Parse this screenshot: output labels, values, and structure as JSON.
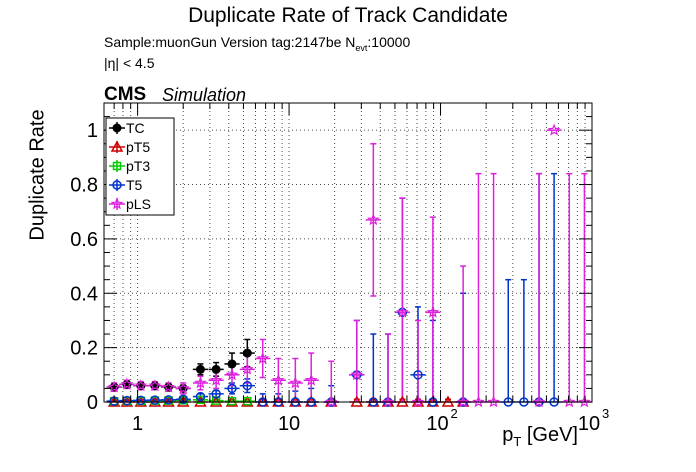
{
  "header": {
    "title": "Duplicate Rate of Track Candidate",
    "sample": "Sample:muonGun   Version tag:2147be  N",
    "sample_sub": "evt",
    "sample_suffix": ":10000",
    "eta_cut": "|η| < 4.5",
    "cms": "CMS",
    "simulation": "Simulation"
  },
  "chart_data": {
    "type": "scatter",
    "title": "Duplicate Rate of Track Candidate",
    "xlabel": "p_T [GeV]",
    "ylabel": "Duplicate Rate",
    "xscale": "log",
    "xlim": [
      0.6,
      1000
    ],
    "ylim": [
      0,
      1.1
    ],
    "xticks": [
      1,
      10,
      100,
      1000
    ],
    "xtick_labels": [
      "1",
      "10",
      "10^2",
      "10^3"
    ],
    "yticks": [
      0,
      0.2,
      0.4,
      0.6,
      0.8,
      1
    ],
    "ytick_labels": [
      "0",
      "0.2",
      "0.4",
      "0.6",
      "0.8",
      "1"
    ],
    "grid": true,
    "legend_position": "top-left",
    "series": [
      {
        "name": "TC",
        "color": "#000000",
        "marker": "filled-circle",
        "points": [
          [
            0.7,
            0.055,
            0.01
          ],
          [
            0.85,
            0.065,
            0.01
          ],
          [
            1.05,
            0.06,
            0.01
          ],
          [
            1.3,
            0.06,
            0.01
          ],
          [
            1.6,
            0.055,
            0.01
          ],
          [
            2.0,
            0.05,
            0.012
          ],
          [
            2.6,
            0.12,
            0.02
          ],
          [
            3.3,
            0.12,
            0.025
          ],
          [
            4.2,
            0.14,
            0.04
          ],
          [
            5.3,
            0.18,
            0.05
          ]
        ]
      },
      {
        "name": "pT5",
        "color": "#cc0000",
        "marker": "open-triangle",
        "points": [
          [
            0.7,
            0.0,
            0.003
          ],
          [
            0.85,
            0.0,
            0.003
          ],
          [
            1.05,
            0.0,
            0.003
          ],
          [
            1.3,
            0.0,
            0.003
          ],
          [
            1.6,
            0.0,
            0.003
          ],
          [
            2.0,
            0.0,
            0.004
          ],
          [
            2.6,
            0.0,
            0.005
          ],
          [
            3.3,
            0.0,
            0.005
          ],
          [
            4.2,
            0.0,
            0.006
          ],
          [
            5.3,
            0.0,
            0.008
          ],
          [
            6.7,
            0.0,
            0.01
          ],
          [
            8.5,
            0.0,
            0.01
          ],
          [
            11,
            0.0,
            0.01
          ],
          [
            14,
            0.0,
            0.01
          ],
          [
            19,
            0.0,
            0.01
          ],
          [
            28,
            0.0,
            0.01
          ],
          [
            36,
            0.0,
            0.01
          ],
          [
            45,
            0.0,
            0.01
          ],
          [
            56,
            0.0,
            0.01
          ],
          [
            71,
            0.0,
            0.01
          ],
          [
            89,
            0.0,
            0.01
          ],
          [
            112,
            0.0,
            0.01
          ],
          [
            141,
            0.0,
            0.01
          ]
        ]
      },
      {
        "name": "pT3",
        "color": "#00cc00",
        "marker": "open-square",
        "points": [
          [
            0.7,
            0.003,
            0.003
          ],
          [
            0.85,
            0.004,
            0.003
          ],
          [
            1.05,
            0.004,
            0.003
          ],
          [
            1.3,
            0.005,
            0.003
          ],
          [
            1.6,
            0.005,
            0.003
          ],
          [
            2.0,
            0.006,
            0.004
          ],
          [
            2.6,
            0.008,
            0.005
          ],
          [
            3.3,
            0.005,
            0.005
          ],
          [
            4.2,
            0.003,
            0.005
          ],
          [
            5.3,
            0.003,
            0.005
          ]
        ]
      },
      {
        "name": "T5",
        "color": "#0033cc",
        "marker": "open-circle",
        "points": [
          [
            0.7,
            0.003,
            0.003
          ],
          [
            0.85,
            0.005,
            0.003
          ],
          [
            1.05,
            0.006,
            0.003
          ],
          [
            1.3,
            0.007,
            0.004
          ],
          [
            1.6,
            0.008,
            0.004
          ],
          [
            2.0,
            0.01,
            0.005
          ],
          [
            2.6,
            0.02,
            0.01
          ],
          [
            3.3,
            0.03,
            0.012
          ],
          [
            4.2,
            0.05,
            0.02
          ],
          [
            5.3,
            0.06,
            0.025
          ],
          [
            6.7,
            0.0,
            0.03
          ],
          [
            8.5,
            0.0,
            0.03
          ],
          [
            11,
            0.0,
            0.04
          ],
          [
            14,
            0.0,
            0.05
          ],
          [
            19,
            0.0,
            0.06
          ],
          [
            28,
            0.1,
            0.2
          ],
          [
            36,
            0.0,
            0.25
          ],
          [
            45,
            0.0,
            0.25
          ],
          [
            56,
            0.33,
            0.42
          ],
          [
            71,
            0.1,
            0.25
          ],
          [
            89,
            0.0,
            0.3
          ],
          [
            141,
            0.0,
            0.4
          ],
          [
            280,
            0.0,
            0.45
          ],
          [
            355,
            0.0,
            0.45
          ],
          [
            447,
            0.0,
            0.84
          ],
          [
            562,
            0.0,
            0.84
          ]
        ]
      },
      {
        "name": "pLS",
        "color": "#dd22dd",
        "marker": "open-star",
        "points": [
          [
            0.7,
            0.055,
            0.015
          ],
          [
            0.85,
            0.065,
            0.015
          ],
          [
            1.05,
            0.06,
            0.015
          ],
          [
            1.3,
            0.06,
            0.015
          ],
          [
            1.6,
            0.055,
            0.015
          ],
          [
            2.0,
            0.05,
            0.02
          ],
          [
            2.6,
            0.07,
            0.025
          ],
          [
            3.3,
            0.08,
            0.03
          ],
          [
            4.2,
            0.1,
            0.04
          ],
          [
            5.3,
            0.12,
            0.05
          ],
          [
            6.7,
            0.16,
            0.07
          ],
          [
            8.5,
            0.08,
            0.08
          ],
          [
            11,
            0.07,
            0.09
          ],
          [
            14,
            0.08,
            0.1
          ],
          [
            19,
            0.0,
            0.15
          ],
          [
            28,
            0.1,
            0.2
          ],
          [
            36,
            0.67,
            0.28
          ],
          [
            45,
            0.0,
            0.25
          ],
          [
            56,
            0.33,
            0.42
          ],
          [
            71,
            0.0,
            0.3
          ],
          [
            89,
            0.33,
            0.35
          ],
          [
            141,
            0.0,
            0.5
          ],
          [
            178,
            0.0,
            0.84
          ],
          [
            224,
            0.0,
            0.84
          ],
          [
            447,
            0.0,
            0.84
          ],
          [
            562,
            1.0,
            0.0
          ],
          [
            708,
            0.0,
            0.84
          ],
          [
            891,
            0.0,
            0.84
          ]
        ]
      }
    ]
  }
}
